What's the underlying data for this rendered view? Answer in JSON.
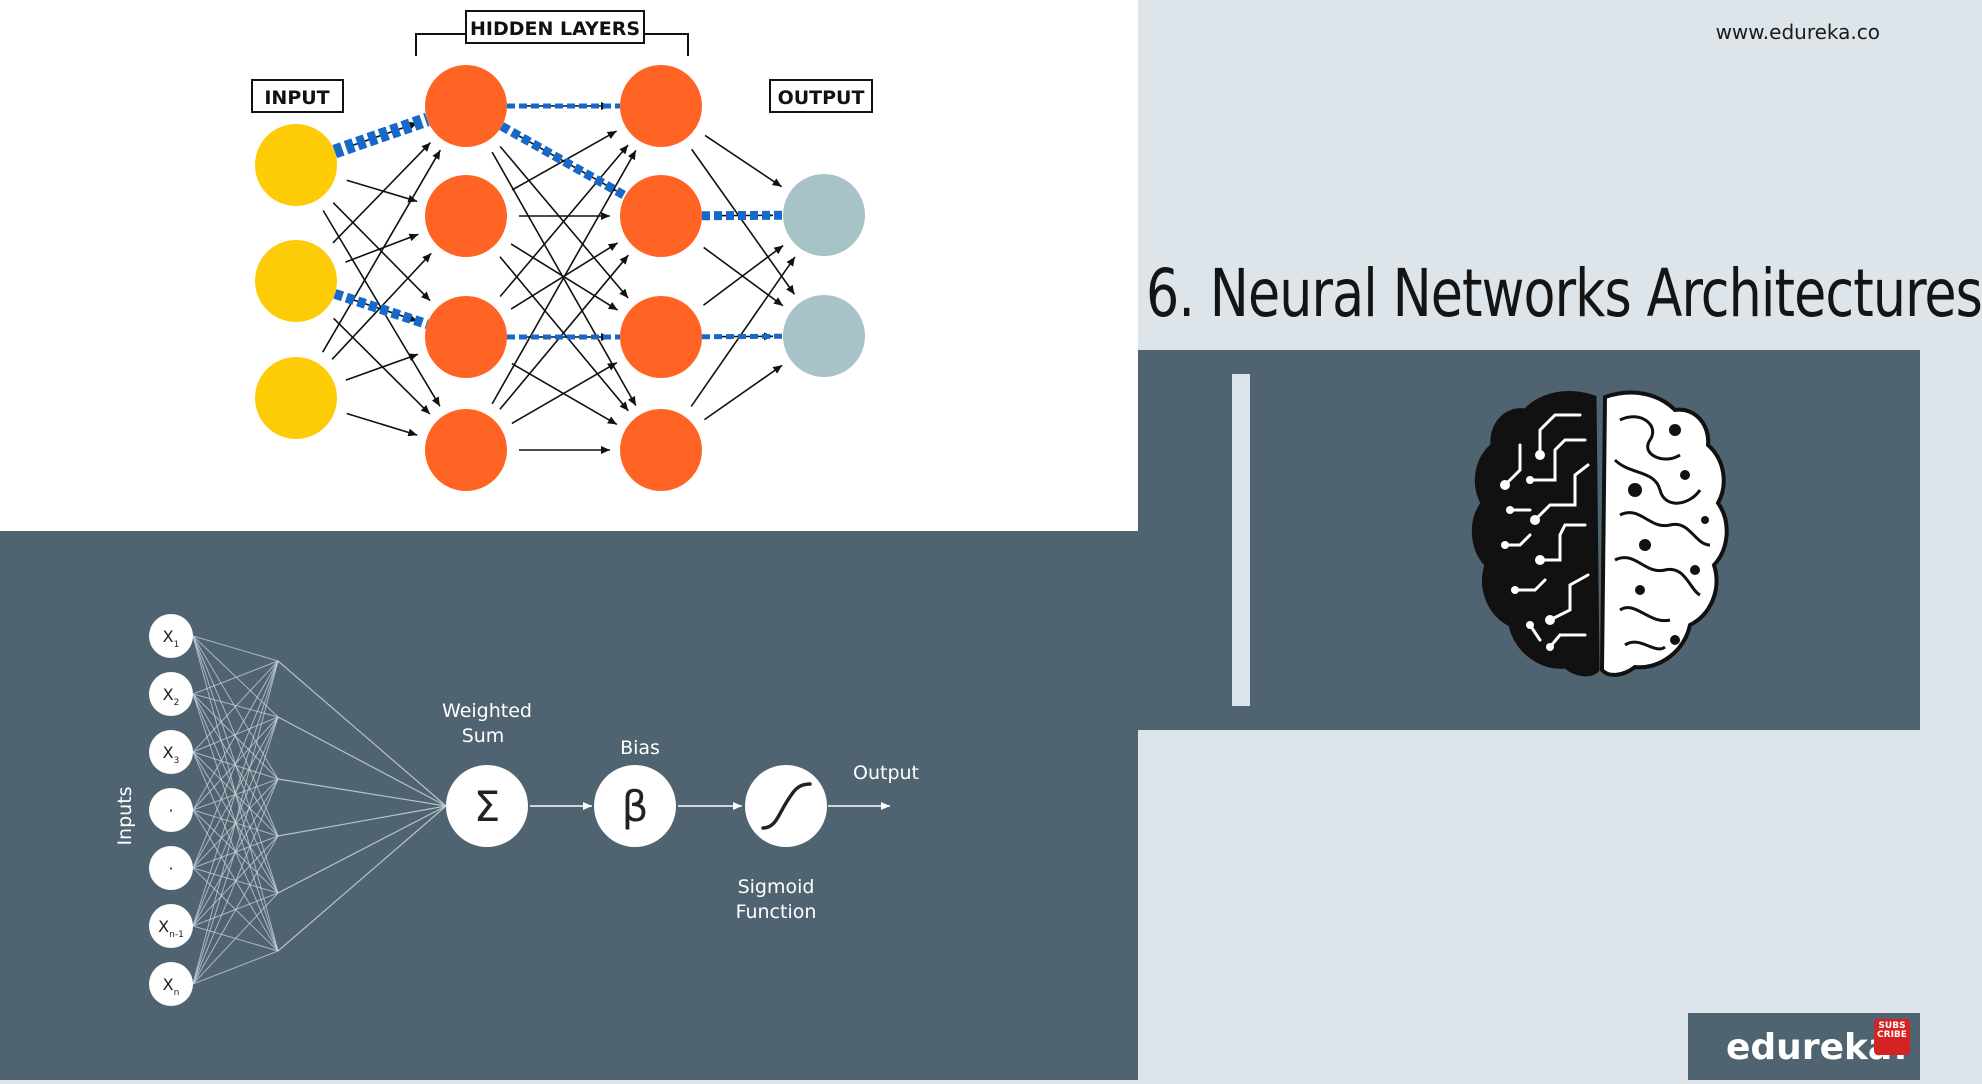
{
  "website": "www.edureka.co",
  "slide_title": "6. Neural Networks Architectures",
  "neural_network": {
    "input_label": "INPUT",
    "hidden_label": "HIDDEN LAYERS",
    "output_label": "OUTPUT",
    "colors": {
      "input": "#fecb07",
      "hidden": "#ff6424",
      "output": "#a8c3c8",
      "highlight": "#1769c9"
    }
  },
  "perceptron": {
    "axis_label": "Inputs",
    "inputs": [
      {
        "base": "X",
        "sub": "1"
      },
      {
        "base": "X",
        "sub": "2"
      },
      {
        "base": "X",
        "sub": "3"
      },
      {
        "base": "·",
        "sub": ""
      },
      {
        "base": "·",
        "sub": ""
      },
      {
        "base": "X",
        "sub": "n-1"
      },
      {
        "base": "X",
        "sub": "n"
      }
    ],
    "sum_symbol": "Σ",
    "sum_label_1": "Weighted",
    "sum_label_2": "Sum",
    "bias_symbol": "β",
    "bias_label": "Bias",
    "sigmoid_label_1": "Sigmoid",
    "sigmoid_label_2": "Function",
    "output_label": "Output"
  },
  "brand": {
    "logo": "edureka!",
    "subscribe": "SUBS CRIBE"
  }
}
